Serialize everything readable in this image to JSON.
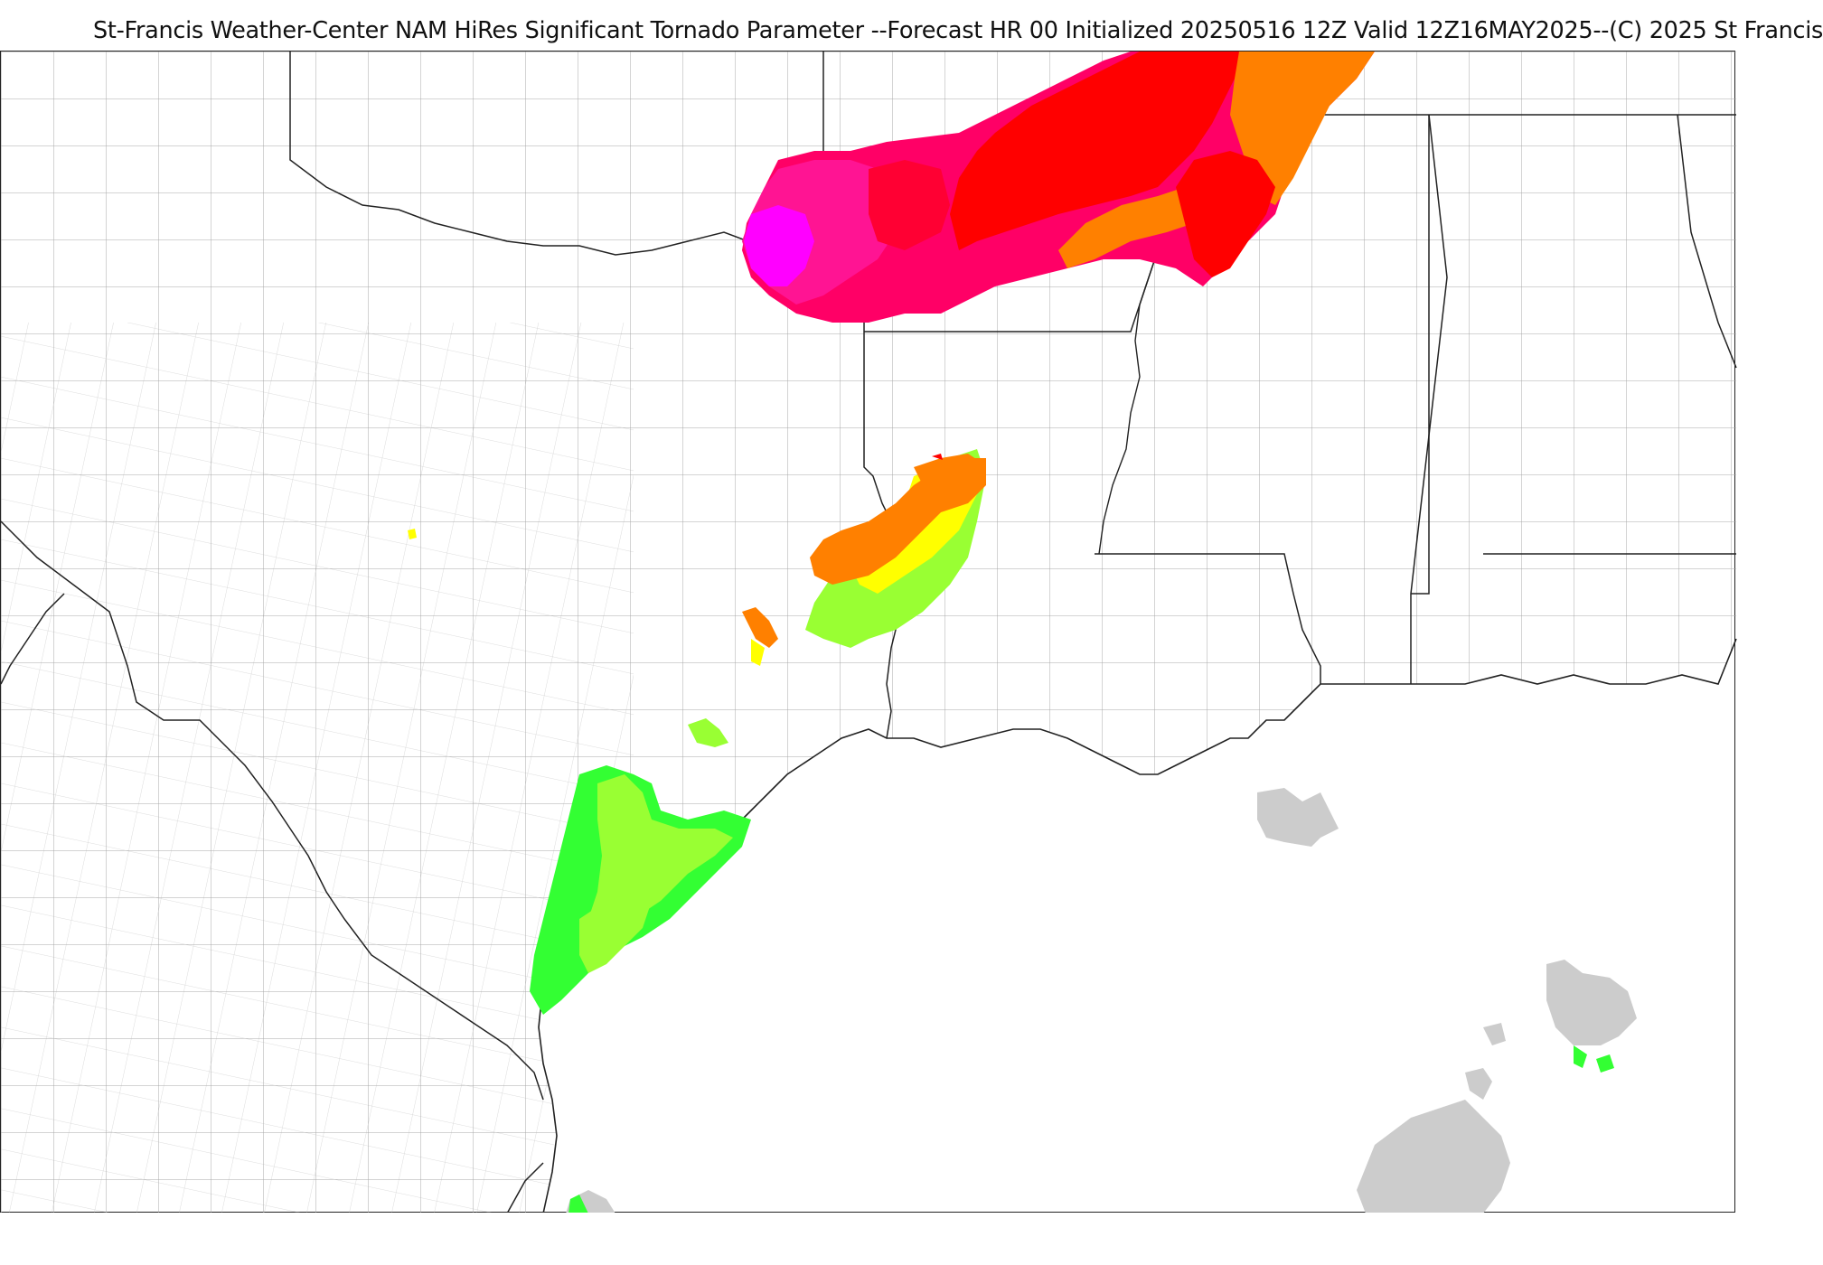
{
  "header": {
    "title": "St-Francis Weather-Center NAM HiRes Significant Tornado Parameter --Forecast HR 00 Initialized 20250516 12Z Valid 12Z16MAY2025--(C) 2025 St Francis"
  },
  "map": {
    "product": "Significant Tornado Parameter",
    "colors": {
      "water_border": "#222222",
      "county_lines": "#9a9a9a",
      "state_lines": "#222222",
      "magenta": "#ff00ff",
      "pink": "#ff1493",
      "crimson": "#ff0066",
      "red": "#ff0000",
      "orange": "#ff8000",
      "yellow": "#ffff00",
      "yellow_green": "#99ff33",
      "green": "#33ff33",
      "cloud_gray": "#cccccc"
    }
  }
}
